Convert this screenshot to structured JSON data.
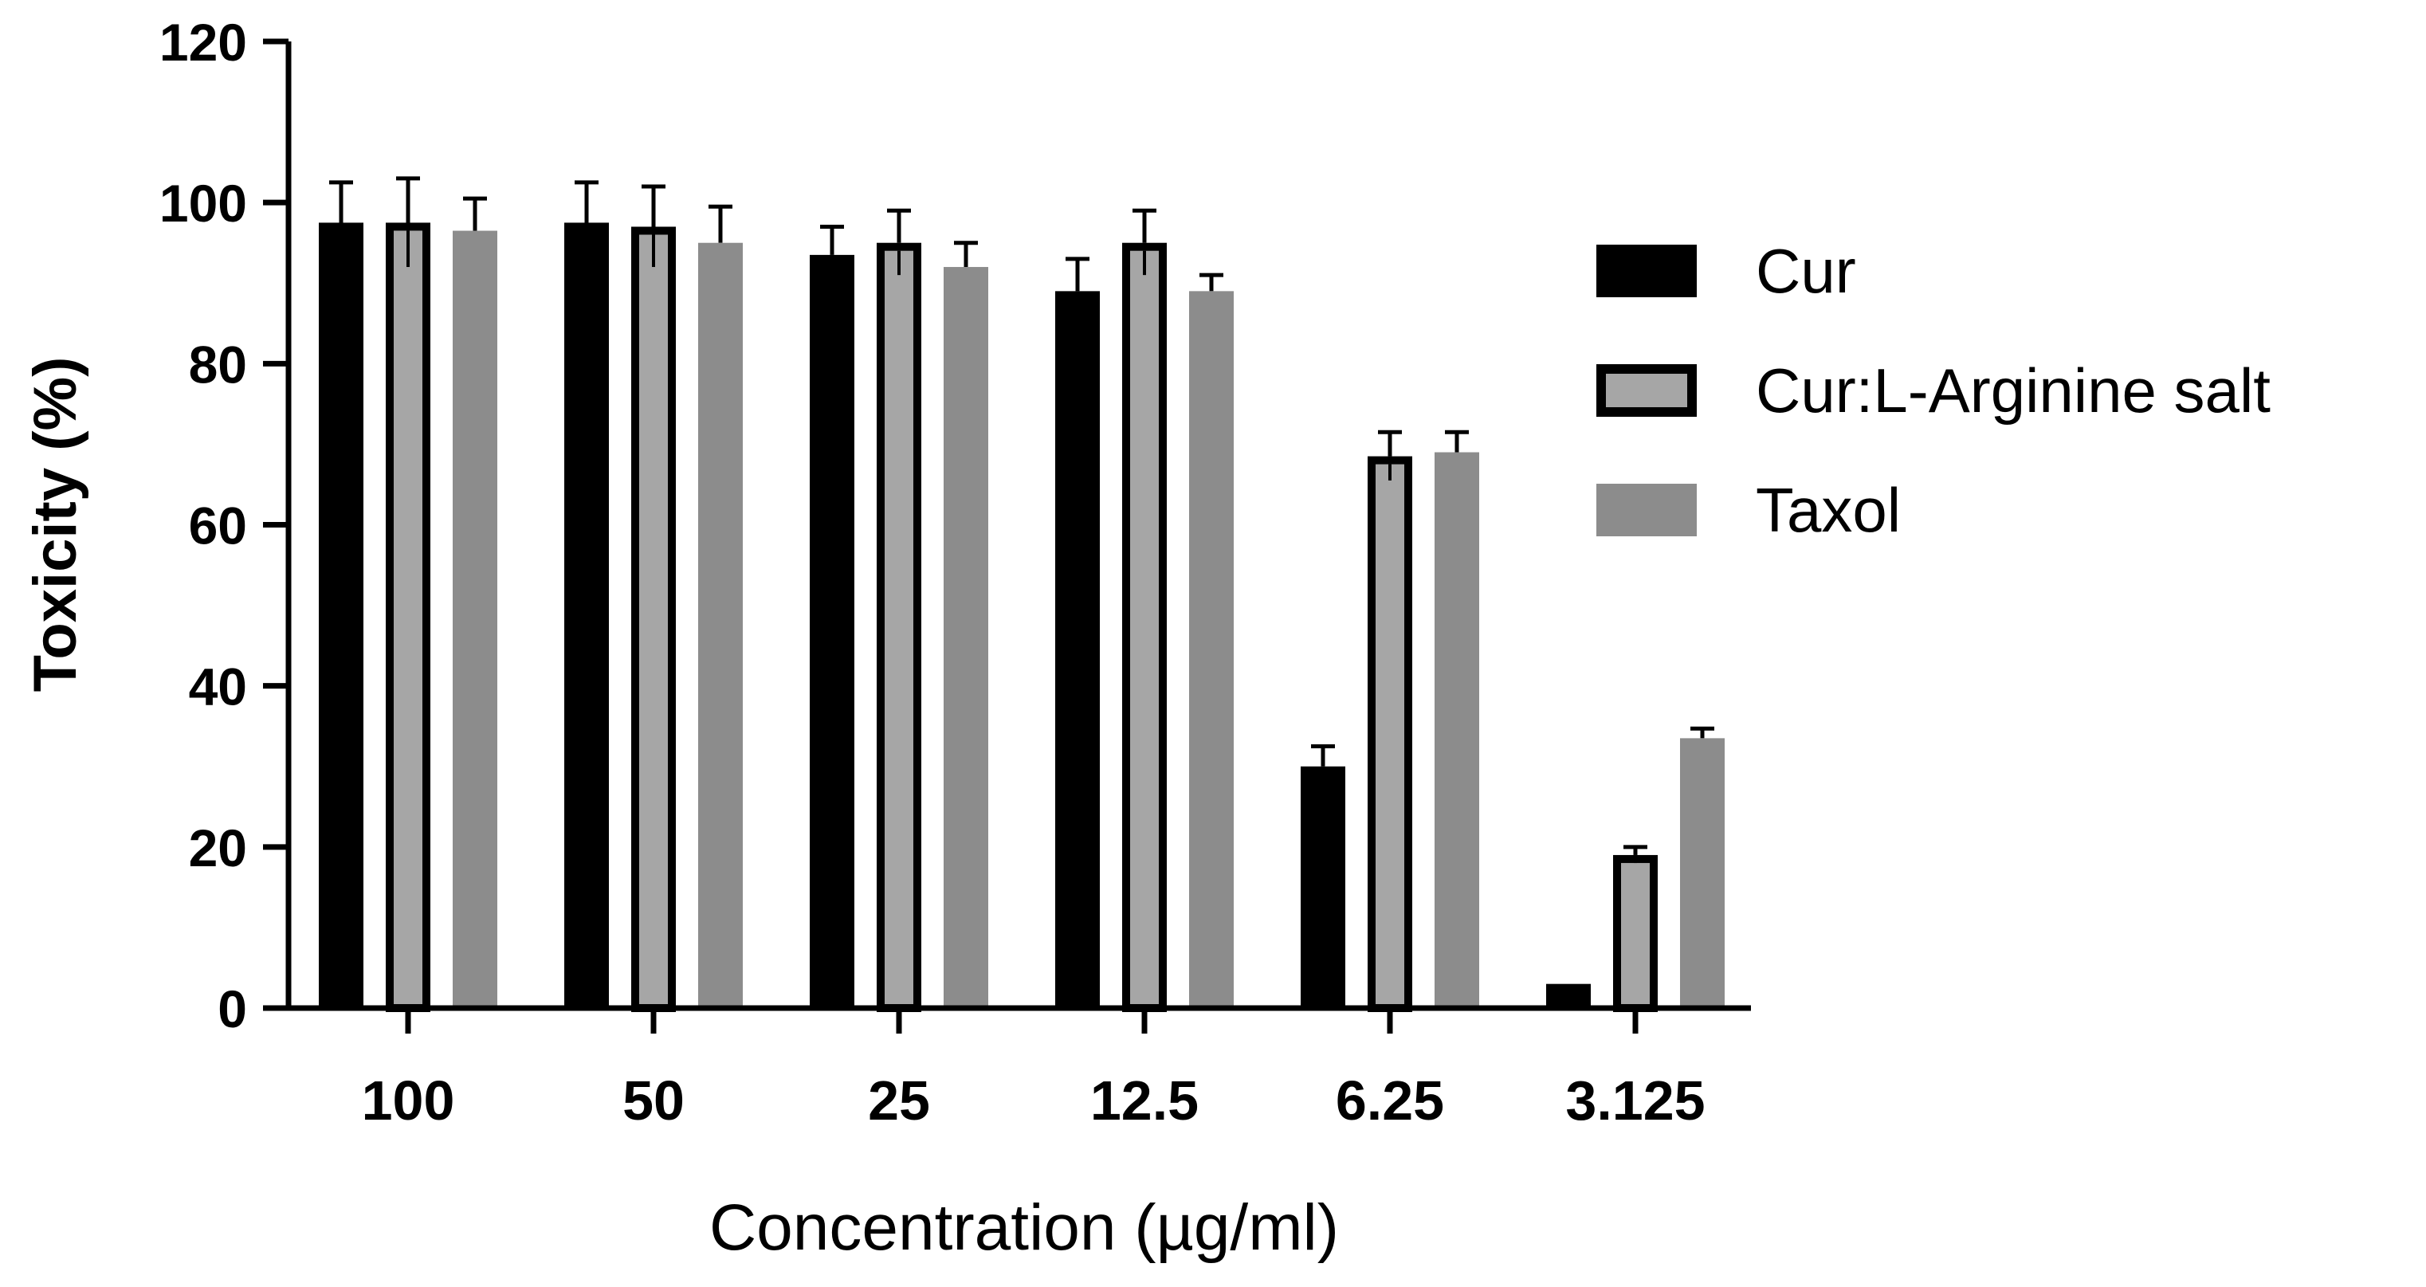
{
  "chart_data": {
    "type": "bar",
    "title": "",
    "xlabel": "Concentration (µg/ml)",
    "ylabel": "Toxicity (%)",
    "ylim": [
      0,
      120
    ],
    "yticks": [
      "0",
      "20",
      "40",
      "60",
      "80",
      "100",
      "120"
    ],
    "categories": [
      "100",
      "50",
      "25",
      "12.5",
      "6.25",
      "3.125"
    ],
    "series": [
      {
        "name": "Cur",
        "color": "#000000",
        "values": [
          97.5,
          97.5,
          93.5,
          89,
          30,
          3
        ],
        "errors": [
          5,
          5,
          3.5,
          4,
          2.5,
          0
        ]
      },
      {
        "name": "Cur:L-Arginine salt",
        "color": "#a6a6a6",
        "edge_color": "#000000",
        "values": [
          97.5,
          97,
          95,
          95,
          68.5,
          19
        ],
        "errors": [
          5.5,
          5,
          4,
          4,
          3,
          1
        ]
      },
      {
        "name": "Taxol",
        "color": "#8c8c8c",
        "values": [
          96.5,
          95,
          92,
          89,
          69,
          33.5
        ],
        "errors": [
          4,
          4.5,
          3,
          2,
          2.5,
          1.2
        ]
      }
    ],
    "legend_position": "right"
  }
}
